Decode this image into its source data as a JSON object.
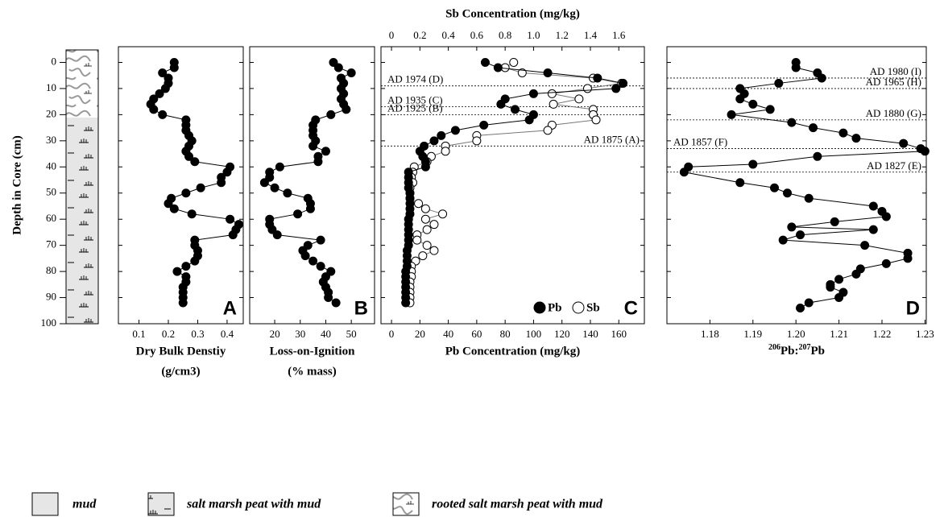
{
  "chart_data": [
    {
      "type": "lithology",
      "ylabel": "Depth in Core (cm)",
      "ylim": [
        100,
        -6
      ],
      "yticks": [
        0,
        10,
        20,
        30,
        40,
        50,
        60,
        70,
        80,
        90,
        100
      ]
    },
    {
      "type": "profile",
      "panel_label": "A",
      "xlabel": [
        "Dry Bulk Denstiy",
        "(g/cm3)"
      ],
      "xlim": [
        0.03,
        0.455
      ],
      "xticks": [
        0.1,
        0.2,
        0.3,
        0.4
      ],
      "ylim": [
        100,
        -6
      ],
      "yticks": [
        0,
        10,
        20,
        30,
        40,
        50,
        60,
        70,
        80,
        90,
        100
      ],
      "y": [
        0,
        2,
        4,
        6,
        8,
        10,
        12,
        14,
        16,
        18,
        20,
        22,
        24,
        26,
        28,
        30,
        32,
        34,
        36,
        38,
        40,
        42,
        44,
        46,
        48,
        50,
        52,
        54,
        56,
        58,
        60,
        62,
        64,
        66,
        68,
        70,
        72,
        74,
        76,
        78,
        80,
        82,
        84,
        86,
        88,
        90,
        92
      ],
      "series": [
        {
          "color": "#000000",
          "fill": "#000000",
          "x": [
            0.22,
            0.22,
            0.18,
            0.2,
            0.2,
            0.19,
            0.17,
            0.15,
            0.14,
            0.15,
            0.18,
            0.26,
            0.26,
            0.26,
            0.27,
            0.28,
            0.27,
            0.26,
            0.27,
            0.29,
            0.41,
            0.4,
            0.38,
            0.38,
            0.31,
            0.26,
            0.21,
            0.2,
            0.22,
            0.28,
            0.41,
            0.44,
            0.43,
            0.42,
            0.29,
            0.29,
            0.3,
            0.3,
            0.29,
            0.26,
            0.23,
            0.26,
            0.26,
            0.25,
            0.25,
            0.25,
            0.25
          ]
        }
      ]
    },
    {
      "type": "profile",
      "panel_label": "B",
      "xlabel": [
        "Loss-on-Ignition",
        "(% mass)"
      ],
      "xlim": [
        10.2,
        59.1
      ],
      "xticks": [
        20,
        30,
        40,
        50
      ],
      "ylim": [
        100,
        -6
      ],
      "yticks": [
        0,
        10,
        20,
        30,
        40,
        50,
        60,
        70,
        80,
        90,
        100
      ],
      "y": [
        0,
        2,
        4,
        6,
        8,
        10,
        12,
        14,
        16,
        18,
        20,
        22,
        24,
        26,
        28,
        30,
        32,
        34,
        36,
        38,
        40,
        42,
        44,
        46,
        48,
        50,
        52,
        54,
        56,
        58,
        60,
        62,
        64,
        66,
        68,
        70,
        72,
        74,
        76,
        78,
        80,
        82,
        84,
        86,
        88,
        90,
        92
      ],
      "series": [
        {
          "color": "#000000",
          "fill": "#000000",
          "x": [
            43,
            45,
            50,
            46,
            47,
            46,
            47,
            46,
            47,
            48,
            42,
            36,
            35,
            35,
            35,
            36,
            35,
            40,
            37,
            37,
            22,
            18,
            18,
            16,
            20,
            25,
            33,
            34,
            34,
            29,
            18,
            18,
            19,
            21,
            38,
            33,
            31,
            32,
            35,
            38,
            42,
            40,
            39,
            40,
            41,
            41,
            44
          ]
        }
      ]
    },
    {
      "type": "profile",
      "panel_label": "C",
      "xlabel": [
        "Pb Concentration (mg/kg)"
      ],
      "x2label": "Sb Concentration (mg/kg)",
      "xlim": [
        -7.4,
        178
      ],
      "xticks": [
        0,
        20,
        40,
        60,
        80,
        100,
        120,
        140,
        160
      ],
      "x2lim": [
        -0.074,
        1.78
      ],
      "x2ticks": [
        0,
        0.2,
        0.4,
        0.6,
        0.8,
        {
          "value": 1,
          "label": "1.0"
        },
        1.2,
        1.4,
        1.6
      ],
      "ylim": [
        100,
        -6
      ],
      "yticks": [
        0,
        10,
        20,
        30,
        40,
        50,
        60,
        70,
        80,
        90,
        100
      ],
      "y": [
        0,
        2,
        4,
        6,
        8,
        10,
        12,
        14,
        16,
        18,
        20,
        22,
        24,
        26,
        28,
        30,
        32,
        34,
        36,
        38,
        40,
        42,
        44,
        46,
        48,
        50,
        52,
        54,
        56,
        58,
        60,
        62,
        64,
        66,
        68,
        70,
        72,
        74,
        76,
        78,
        80,
        82,
        84,
        86,
        88,
        90,
        92
      ],
      "series": [
        {
          "name": "Sb",
          "axis": "x2",
          "color": "#777777",
          "fill": "#ffffff",
          "x": [
            0.86,
            0.8,
            0.92,
            1.42,
            1.62,
            1.38,
            1.13,
            1.32,
            1.14,
            1.42,
            1.42,
            1.44,
            1.13,
            1.1,
            0.6,
            0.6,
            0.38,
            0.38,
            0.28,
            0.25,
            0.16,
            0.15,
            0.14,
            0.15,
            0.13,
            0.13,
            0.13,
            0.19,
            0.24,
            0.36,
            0.24,
            0.3,
            0.25,
            0.18,
            0.18,
            0.25,
            0.3,
            0.22,
            0.17,
            0.14,
            0.14,
            0.14,
            0.13,
            0.13,
            0.13,
            0.13,
            0.13
          ]
        },
        {
          "name": "Pb",
          "color": "#000000",
          "fill": "#000000",
          "x": [
            66,
            75,
            110,
            145,
            163,
            158,
            100,
            80,
            77,
            87,
            100,
            97,
            65,
            45,
            35,
            30,
            23,
            20,
            22,
            24,
            24,
            12,
            12,
            12,
            12,
            13,
            13,
            13,
            13,
            13,
            12,
            12,
            12,
            12,
            12,
            12,
            11,
            11,
            11,
            11,
            10,
            10,
            10,
            10,
            10,
            10,
            10
          ]
        }
      ],
      "annotations": [
        {
          "text": "AD 1974 (D)",
          "depth": 9
        },
        {
          "text": "AD 1935 (C)",
          "depth": 17
        },
        {
          "text": "AD 1925 (B)",
          "depth": 20
        },
        {
          "text": "AD 1875 (A)",
          "depth": 32
        }
      ]
    },
    {
      "type": "profile",
      "panel_label": "D",
      "xlabel_parts": [
        "206",
        "Pb:",
        "207",
        "Pb"
      ],
      "xlim": [
        1.17,
        1.2303
      ],
      "xticks": [
        1.18,
        1.19,
        {
          "value": 1.2,
          "label": "1.20"
        },
        1.21,
        1.22,
        1.23
      ],
      "ylim": [
        100,
        -6
      ],
      "yticks": [
        0,
        10,
        20,
        30,
        40,
        50,
        60,
        70,
        80,
        90,
        100
      ],
      "y": [
        0,
        2,
        4,
        6,
        8,
        10,
        12,
        14,
        16,
        18,
        20,
        23,
        25,
        27,
        29,
        31,
        33,
        34,
        36,
        39,
        40,
        42,
        46,
        48,
        50,
        52,
        55,
        57,
        59,
        61,
        63,
        64,
        66,
        68,
        70,
        73,
        75,
        77,
        79,
        81,
        83,
        85,
        86,
        88,
        90,
        92,
        94
      ],
      "series": [
        {
          "color": "#000000",
          "fill": "#000000",
          "x": [
            1.2,
            1.2,
            1.205,
            1.206,
            1.196,
            1.187,
            1.188,
            1.187,
            1.19,
            1.194,
            1.185,
            1.199,
            1.204,
            1.211,
            1.214,
            1.225,
            1.229,
            1.23,
            1.205,
            1.19,
            1.175,
            1.174,
            1.187,
            1.195,
            1.198,
            1.203,
            1.218,
            1.22,
            1.221,
            1.209,
            1.199,
            1.218,
            1.201,
            1.197,
            1.216,
            1.226,
            1.226,
            1.221,
            1.215,
            1.214,
            1.21,
            1.208,
            1.208,
            1.211,
            1.21,
            1.203,
            1.201
          ]
        }
      ],
      "annotations": [
        {
          "text": "AD 1980 (I)",
          "depth": 6
        },
        {
          "text": "AD 1965 (H)",
          "depth": 10
        },
        {
          "text": "AD 1880 (G)",
          "depth": 22
        },
        {
          "text": "AD 1857 (F)",
          "depth": 33
        },
        {
          "text": "AD 1827 (E)",
          "depth": 42
        }
      ]
    }
  ],
  "legend": [
    "mud",
    "salt marsh peat with mud",
    "rooted salt marsh peat with mud"
  ]
}
